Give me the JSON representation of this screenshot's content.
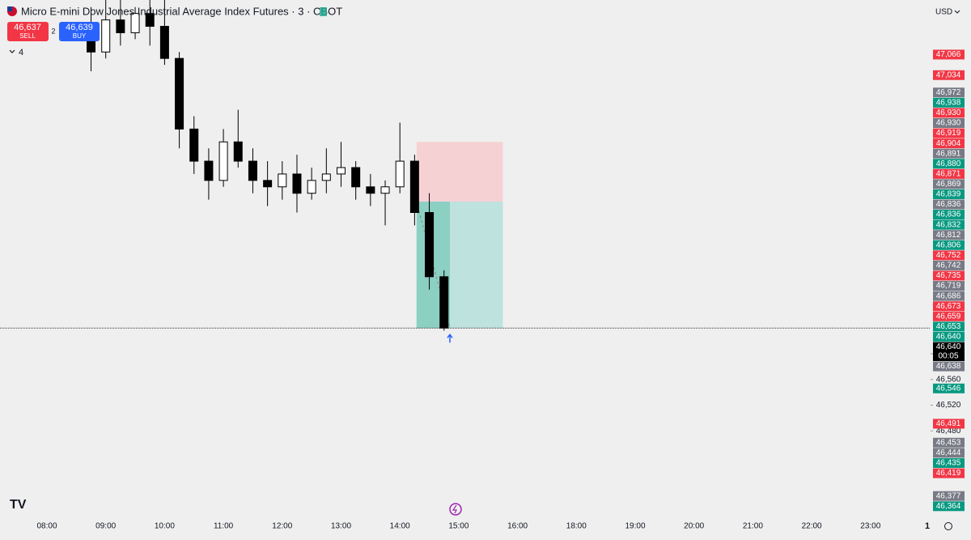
{
  "chart_data": {
    "type": "candlestick",
    "title": "Micro E-mini Dow Jones Industrial Average Index Futures · 3 · CBOT",
    "currency": "USD",
    "sell": {
      "price": {
        "value": 46637,
        "label": "46,637"
      },
      "label": "SELL"
    },
    "spread": 2,
    "buy": {
      "price": {
        "value": 46639,
        "label": "46,639"
      },
      "label": "BUY"
    },
    "indicators_count": 4,
    "ylim": [
      46344,
      47151
    ],
    "yticks": [
      {
        "value": 46600,
        "label": "46,600"
      },
      {
        "value": 46560,
        "label": "46,560"
      },
      {
        "value": 46520,
        "label": "46,520"
      },
      {
        "value": 46480,
        "label": "46,480"
      }
    ],
    "xticks": [
      "08:00",
      "09:00",
      "10:00",
      "11:00",
      "12:00",
      "13:00",
      "14:00",
      "15:00",
      "16:00",
      "18:00",
      "19:00",
      "20:00",
      "21:00",
      "22:00",
      "23:00"
    ],
    "x": [
      "08:45",
      "09:00",
      "09:15",
      "09:30",
      "09:45",
      "10:00",
      "10:15",
      "10:30",
      "10:45",
      "11:00",
      "11:15",
      "11:30",
      "11:45",
      "12:00",
      "12:15",
      "12:30",
      "12:45",
      "13:00",
      "13:15",
      "13:30",
      "13:45",
      "14:00",
      "14:15",
      "14:30",
      "14:45"
    ],
    "open": [
      47090,
      47070,
      47120,
      47100,
      47130,
      47110,
      47060,
      46950,
      46900,
      46870,
      46930,
      46900,
      46870,
      46860,
      46880,
      46850,
      46870,
      46880,
      46890,
      46860,
      46850,
      46860,
      46900,
      46820,
      46720
    ],
    "high": [
      47140,
      47151,
      47151,
      47140,
      47151,
      47151,
      47070,
      46970,
      46920,
      46950,
      46980,
      46920,
      46900,
      46900,
      46910,
      46890,
      46920,
      46930,
      46900,
      46880,
      46870,
      46960,
      46910,
      46850,
      46730
    ],
    "low": [
      47040,
      47060,
      47080,
      47090,
      47080,
      47050,
      46920,
      46880,
      46840,
      46860,
      46890,
      46850,
      46830,
      46840,
      46820,
      46840,
      46850,
      46860,
      46840,
      46830,
      46800,
      46850,
      46800,
      46700,
      46636
    ],
    "close": [
      47070,
      47120,
      47100,
      47130,
      47110,
      47060,
      46950,
      46900,
      46870,
      46930,
      46900,
      46870,
      46860,
      46880,
      46850,
      46870,
      46880,
      46890,
      46860,
      46850,
      46860,
      46900,
      46820,
      46720,
      46640
    ],
    "up_color": "#ffffff",
    "down_color": "#000000",
    "position": {
      "stop": 46930,
      "entry": 46837,
      "target": 46640,
      "start": "14:17",
      "end": "15:45",
      "exit": "14:51"
    },
    "price_tags": [
      {
        "value": 47066,
        "label": "47,066",
        "color": "#f23645"
      },
      {
        "value": 47034,
        "label": "47,034",
        "color": "#f23645"
      },
      {
        "value": 46972,
        "label": "46,972",
        "color": "#787b86"
      },
      {
        "value": 46938,
        "label": "46,938",
        "color": "#089981"
      },
      {
        "value": 46930,
        "label": "46,930",
        "color": "#f23645"
      },
      {
        "value": 46930,
        "label": "46,930",
        "color": "#787b86"
      },
      {
        "value": 46919,
        "label": "46,919",
        "color": "#f23645"
      },
      {
        "value": 46904,
        "label": "46,904",
        "color": "#f23645"
      },
      {
        "value": 46891,
        "label": "46,891",
        "color": "#787b86"
      },
      {
        "value": 46880,
        "label": "46,880",
        "color": "#089981"
      },
      {
        "value": 46871,
        "label": "46,871",
        "color": "#f23645"
      },
      {
        "value": 46869,
        "label": "46,869",
        "color": "#787b86"
      },
      {
        "value": 46839,
        "label": "46,839",
        "color": "#089981"
      },
      {
        "value": 46836,
        "label": "46,836",
        "color": "#787b86"
      },
      {
        "value": 46836,
        "label": "46,836",
        "color": "#089981"
      },
      {
        "value": 46832,
        "label": "46,832",
        "color": "#089981"
      },
      {
        "value": 46812,
        "label": "46,812",
        "color": "#787b86"
      },
      {
        "value": 46806,
        "label": "46,806",
        "color": "#089981"
      },
      {
        "value": 46752,
        "label": "46,752",
        "color": "#f23645"
      },
      {
        "value": 46742,
        "label": "46,742",
        "color": "#787b86"
      },
      {
        "value": 46735,
        "label": "46,735",
        "color": "#f23645"
      },
      {
        "value": 46719,
        "label": "46,719",
        "color": "#787b86"
      },
      {
        "value": 46686,
        "label": "46,686",
        "color": "#787b86"
      },
      {
        "value": 46673,
        "label": "46,673",
        "color": "#f23645"
      },
      {
        "value": 46659,
        "label": "46,659",
        "color": "#f23645"
      },
      {
        "value": 46653,
        "label": "46,653",
        "color": "#089981"
      },
      {
        "value": 46640,
        "label": "46,640",
        "color": "#089981"
      },
      {
        "value": 46638,
        "label": "46,638",
        "color": "#787b86"
      },
      {
        "value": 46546,
        "label": "46,546",
        "color": "#089981"
      },
      {
        "value": 46491,
        "label": "46,491",
        "color": "#f23645"
      },
      {
        "value": 46453,
        "label": "46,453",
        "color": "#787b86"
      },
      {
        "value": 46444,
        "label": "46,444",
        "color": "#787b86"
      },
      {
        "value": 46435,
        "label": "46,435",
        "color": "#089981"
      },
      {
        "value": 46419,
        "label": "46,419",
        "color": "#f23645"
      },
      {
        "value": 46377,
        "label": "46,377",
        "color": "#787b86"
      },
      {
        "value": 46364,
        "label": "46,364",
        "color": "#089981"
      }
    ],
    "last_price": {
      "value": 46640,
      "label": "46,640",
      "countdown": "00:05",
      "color": "#000000"
    },
    "scale_label": "1"
  }
}
